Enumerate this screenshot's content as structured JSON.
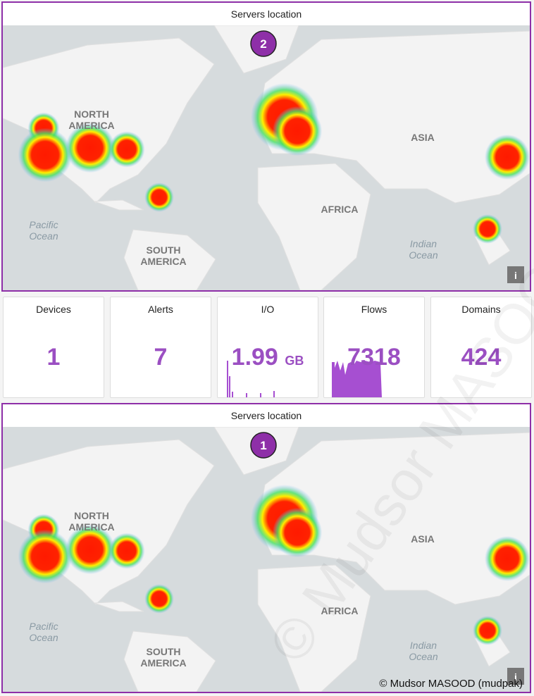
{
  "panels": [
    {
      "title": "Servers location",
      "badge": "2",
      "map_labels": [
        {
          "lines": [
            "NORTH",
            "AMERICA"
          ],
          "kind": "continent"
        },
        {
          "lines": [
            "ASIA"
          ],
          "kind": "continent"
        },
        {
          "lines": [
            "AFRICA"
          ],
          "kind": "continent"
        },
        {
          "lines": [
            "SOUTH",
            "AMERICA"
          ],
          "kind": "continent"
        },
        {
          "lines": [
            "Pacific",
            "Ocean"
          ],
          "kind": "ocean"
        },
        {
          "lines": [
            "Indian",
            "Ocean"
          ],
          "kind": "ocean"
        }
      ],
      "info_button": "i"
    },
    {
      "title": "Servers location",
      "badge": "1",
      "map_labels": [
        {
          "lines": [
            "NORTH",
            "AMERICA"
          ],
          "kind": "continent"
        },
        {
          "lines": [
            "ASIA"
          ],
          "kind": "continent"
        },
        {
          "lines": [
            "AFRICA"
          ],
          "kind": "continent"
        },
        {
          "lines": [
            "SOUTH",
            "AMERICA"
          ],
          "kind": "continent"
        },
        {
          "lines": [
            "Pacific",
            "Ocean"
          ],
          "kind": "ocean"
        },
        {
          "lines": [
            "Indian",
            "Ocean"
          ],
          "kind": "ocean"
        }
      ],
      "info_button": "i"
    }
  ],
  "stats": [
    {
      "label": "Devices",
      "value": 1
    },
    {
      "label": "Alerts",
      "value": 7
    },
    {
      "label": "I/O",
      "value": 1.99,
      "unit": "GB"
    },
    {
      "label": "Flows",
      "value": 7318
    },
    {
      "label": "Domains",
      "value": 424
    }
  ],
  "watermark": "© Mudsor MASOOD (mudpak)"
}
